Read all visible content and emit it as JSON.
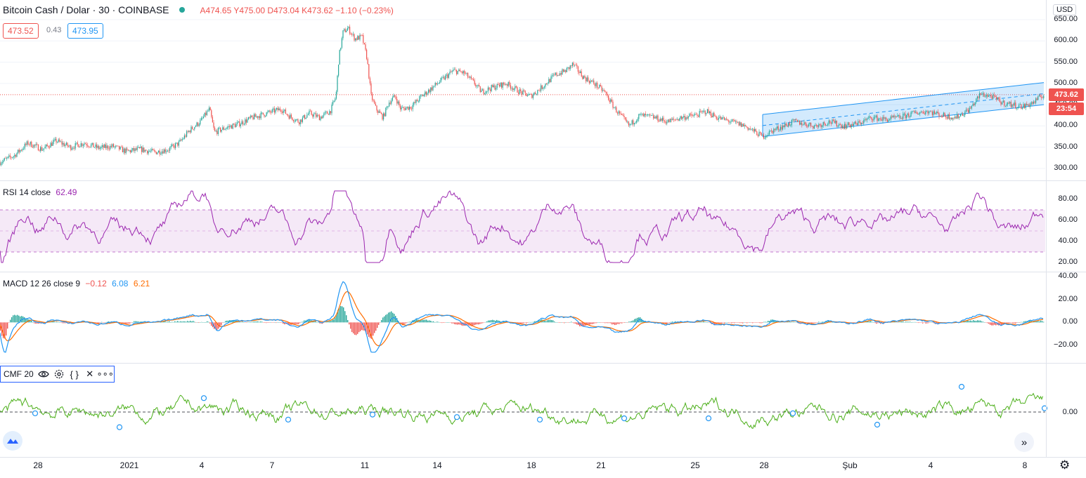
{
  "header": {
    "symbol": "Bitcoin Cash / Dolar · 30 · COINBASE",
    "ohlc": "A474.65 Y475.00 D473.04 K473.62 −1.10 (−0.23%)",
    "bid": "473.52",
    "spread": "0.43",
    "ask": "473.95",
    "currency": "USD"
  },
  "price_axis": {
    "labels": [
      "650.00",
      "600.00",
      "550.00",
      "500.00",
      "450.00",
      "400.00",
      "350.00",
      "300.00"
    ],
    "last_price": "473.62",
    "countdown": "23:54"
  },
  "rsi": {
    "title": "RSI 14 close",
    "value": "62.49",
    "labels": [
      "80.00",
      "60.00",
      "40.00",
      "20.00"
    ]
  },
  "macd": {
    "title": "MACD 12 26 close 9",
    "hist": "−0.12",
    "macd": "6.08",
    "signal": "6.21",
    "labels": [
      "40.00",
      "20.00",
      "0.00",
      "−20.00"
    ]
  },
  "cmf": {
    "title": "CMF 20",
    "zero_label": "0.00"
  },
  "time_axis": [
    "28",
    "2021",
    "4",
    "7",
    "11",
    "14",
    "18",
    "21",
    "25",
    "28",
    "Şub",
    "4",
    "8"
  ],
  "chart_data": {
    "type": "candlestick",
    "title": "Bitcoin Cash / Dolar · 30 · COINBASE",
    "ylim": [
      280,
      660
    ],
    "price_series": [
      [
        0,
        315
      ],
      [
        20,
        330
      ],
      [
        40,
        360
      ],
      [
        60,
        345
      ],
      [
        80,
        365
      ],
      [
        100,
        350
      ],
      [
        120,
        360
      ],
      [
        140,
        348
      ],
      [
        160,
        352
      ],
      [
        180,
        340
      ],
      [
        200,
        345
      ],
      [
        220,
        338
      ],
      [
        240,
        345
      ],
      [
        255,
        360
      ],
      [
        270,
        390
      ],
      [
        285,
        410
      ],
      [
        298,
        440
      ],
      [
        305,
        385
      ],
      [
        320,
        395
      ],
      [
        340,
        405
      ],
      [
        360,
        420
      ],
      [
        380,
        430
      ],
      [
        400,
        440
      ],
      [
        410,
        425
      ],
      [
        425,
        410
      ],
      [
        440,
        430
      ],
      [
        455,
        420
      ],
      [
        470,
        435
      ],
      [
        478,
        470
      ],
      [
        482,
        560
      ],
      [
        488,
        620
      ],
      [
        495,
        630
      ],
      [
        505,
        605
      ],
      [
        515,
        610
      ],
      [
        522,
        560
      ],
      [
        528,
        470
      ],
      [
        535,
        440
      ],
      [
        545,
        420
      ],
      [
        553,
        455
      ],
      [
        562,
        470
      ],
      [
        570,
        440
      ],
      [
        585,
        445
      ],
      [
        600,
        470
      ],
      [
        615,
        490
      ],
      [
        630,
        510
      ],
      [
        645,
        530
      ],
      [
        660,
        525
      ],
      [
        675,
        500
      ],
      [
        685,
        480
      ],
      [
        700,
        490
      ],
      [
        720,
        500
      ],
      [
        740,
        480
      ],
      [
        755,
        470
      ],
      [
        770,
        490
      ],
      [
        790,
        520
      ],
      [
        805,
        530
      ],
      [
        815,
        545
      ],
      [
        830,
        515
      ],
      [
        845,
        500
      ],
      [
        860,
        480
      ],
      [
        875,
        440
      ],
      [
        885,
        420
      ],
      [
        895,
        400
      ],
      [
        910,
        425
      ],
      [
        930,
        420
      ],
      [
        950,
        410
      ],
      [
        970,
        420
      ],
      [
        990,
        425
      ],
      [
        1005,
        435
      ],
      [
        1020,
        420
      ],
      [
        1040,
        410
      ],
      [
        1060,
        400
      ],
      [
        1075,
        385
      ],
      [
        1085,
        375
      ],
      [
        1100,
        390
      ],
      [
        1115,
        400
      ],
      [
        1130,
        410
      ],
      [
        1145,
        405
      ],
      [
        1160,
        400
      ],
      [
        1180,
        410
      ],
      [
        1200,
        400
      ],
      [
        1220,
        405
      ],
      [
        1240,
        420
      ],
      [
        1260,
        415
      ],
      [
        1280,
        420
      ],
      [
        1300,
        430
      ],
      [
        1320,
        435
      ],
      [
        1340,
        425
      ],
      [
        1360,
        420
      ],
      [
        1380,
        440
      ],
      [
        1395,
        475
      ],
      [
        1410,
        470
      ],
      [
        1425,
        455
      ],
      [
        1440,
        450
      ],
      [
        1455,
        445
      ],
      [
        1470,
        455
      ],
      [
        1485,
        474
      ]
    ],
    "channel": {
      "start": [
        1085,
        375
      ],
      "end": [
        1485,
        450
      ],
      "width": 52
    },
    "rsi_range": [
      0,
      100
    ],
    "rsi_bands": [
      30,
      50,
      70
    ],
    "macd_range": [
      -30,
      45
    ],
    "cmf_range": [
      -0.3,
      0.3
    ]
  }
}
